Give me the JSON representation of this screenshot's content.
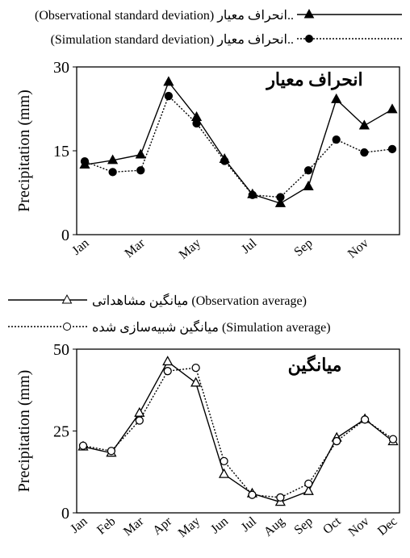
{
  "chart_data": [
    {
      "type": "line",
      "title": "انحراف معیار",
      "y_label": "Precipitation (mm)",
      "categories": [
        "Jan",
        null,
        "Mar",
        null,
        "May",
        null,
        "Jul",
        null,
        "Sep",
        null,
        "Nov",
        null
      ],
      "series": [
        {
          "name": "(Observational standard deviation) انحراف معیار..",
          "color": "#000000",
          "marker": "triangle",
          "filled": true,
          "dashed": false,
          "values": [
            12.5,
            13.3,
            14.3,
            27.3,
            21,
            13.5,
            7.2,
            5.6,
            8.6,
            24.2,
            19.5,
            22.4
          ]
        },
        {
          "name": "(Simulation standard deviation) انحراف معیار..",
          "color": "#000000",
          "marker": "circle",
          "filled": true,
          "dashed": true,
          "values": [
            13.1,
            11.2,
            11.5,
            24.8,
            19.9,
            13.2,
            7.1,
            6.7,
            11.5,
            17,
            14.7,
            15.3
          ]
        }
      ],
      "ylim": [
        0,
        30
      ],
      "yticks": [
        0,
        15,
        30
      ],
      "grid": false
    },
    {
      "type": "line",
      "title": "میانگین",
      "y_label": "Precipitation (mm)",
      "categories": [
        "Jan",
        "Feb",
        "Mar",
        "Apr",
        "May",
        "Jun",
        "Jul",
        "Aug",
        "Sep",
        "Oct",
        "Nov",
        "Dec"
      ],
      "series": [
        {
          "name": "میانگین مشاهداتی (Observation average)",
          "color": "#000000",
          "marker": "triangle",
          "filled": false,
          "dashed": false,
          "values": [
            20.2,
            18.3,
            30.5,
            46.2,
            39.7,
            11.8,
            5.9,
            3.3,
            6.6,
            22.9,
            28.6,
            21.8
          ]
        },
        {
          "name": "میانگین شبیه‌سازی شده (Simulation average)",
          "color": "#000000",
          "marker": "circle",
          "filled": false,
          "dashed": true,
          "values": [
            20.5,
            18.9,
            28.2,
            43.3,
            44.3,
            15.8,
            5.5,
            4.7,
            8.9,
            21.9,
            28.5,
            22.5
          ]
        }
      ],
      "ylim": [
        0,
        50
      ],
      "yticks": [
        0,
        25,
        50
      ],
      "grid": false
    }
  ]
}
